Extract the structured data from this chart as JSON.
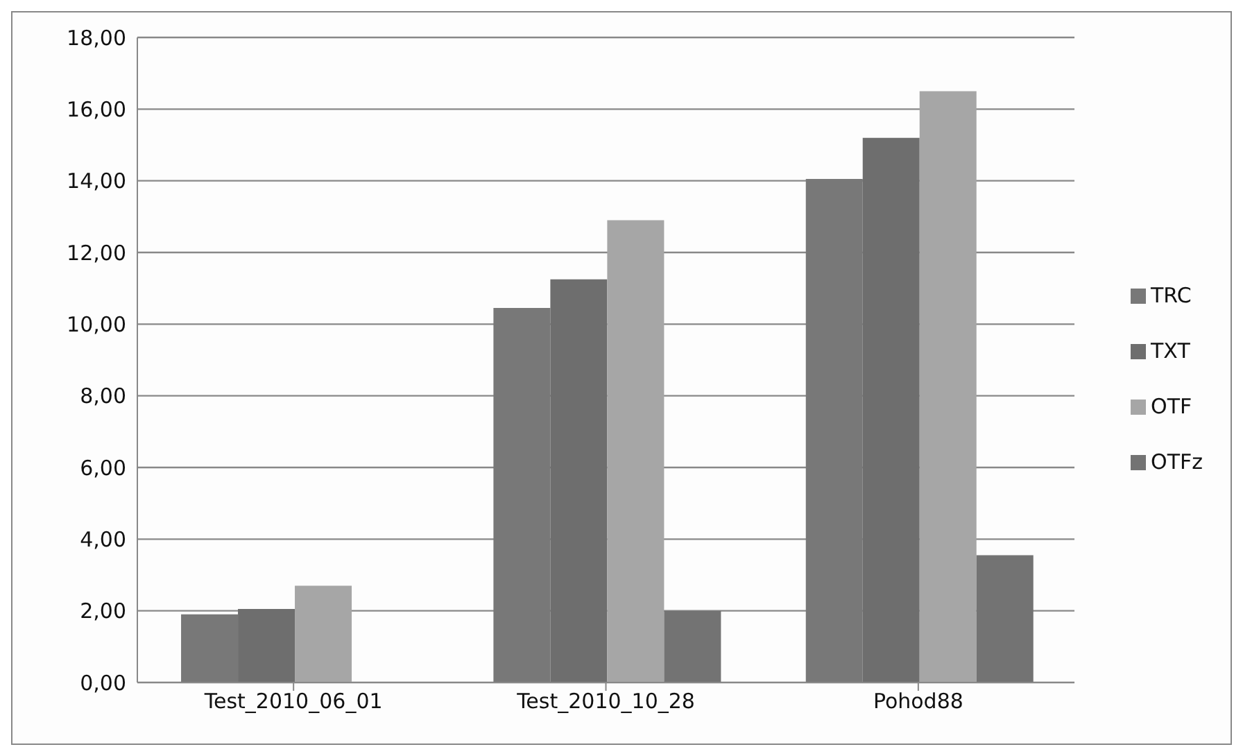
{
  "chart_data": {
    "type": "bar",
    "categories": [
      "Test_2010_06_01",
      "Test_2010_10_28",
      "Pohod88"
    ],
    "series": [
      {
        "name": "TRC",
        "color": "#787878",
        "values": [
          1.9,
          10.45,
          14.05
        ]
      },
      {
        "name": "TXT",
        "color": "#6e6e6e",
        "values": [
          2.05,
          11.25,
          15.2
        ]
      },
      {
        "name": "OTF",
        "color": "#a6a6a6",
        "values": [
          2.7,
          12.9,
          16.5
        ]
      },
      {
        "name": "OTFz",
        "color": "#737373",
        "values": [
          null,
          2.0,
          3.55
        ]
      }
    ],
    "ylim": [
      0,
      18
    ],
    "yticks": [
      {
        "value": 0,
        "label": "0,00"
      },
      {
        "value": 2,
        "label": "2,00"
      },
      {
        "value": 4,
        "label": "4,00"
      },
      {
        "value": 6,
        "label": "6,00"
      },
      {
        "value": 8,
        "label": "8,00"
      },
      {
        "value": 10,
        "label": "10,00"
      },
      {
        "value": 12,
        "label": "12,00"
      },
      {
        "value": 14,
        "label": "14,00"
      },
      {
        "value": 16,
        "label": "16,00"
      },
      {
        "value": 18,
        "label": "18,00"
      }
    ],
    "grid": "y",
    "legend": "right"
  }
}
